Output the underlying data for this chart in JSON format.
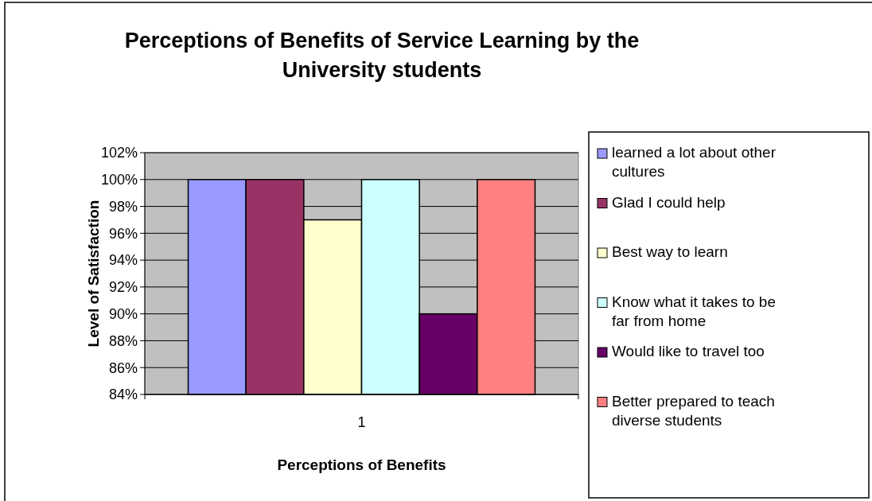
{
  "chart_data": {
    "type": "bar",
    "title": "Perceptions of Benefits of Service Learning by the University students",
    "xlabel": "Perceptions of Benefits",
    "ylabel": "Level of Satisfaction",
    "categories": [
      "1"
    ],
    "series": [
      {
        "name": "learned a lot about other cultures",
        "color": "#9999ff",
        "values": [
          100
        ]
      },
      {
        "name": "Glad I could help",
        "color": "#993366",
        "values": [
          100
        ]
      },
      {
        "name": "Best way to learn",
        "color": "#ffffcc",
        "values": [
          97
        ]
      },
      {
        "name": "Know what it takes to be far from home",
        "color": "#ccffff",
        "values": [
          100
        ]
      },
      {
        "name": "Would like to travel too",
        "color": "#660066",
        "values": [
          90
        ]
      },
      {
        "name": "Better prepared to teach diverse students",
        "color": "#ff8080",
        "values": [
          100
        ]
      }
    ],
    "ylim": [
      84,
      102
    ],
    "yticks": [
      {
        "value": 84,
        "label": "84%"
      },
      {
        "value": 86,
        "label": "86%"
      },
      {
        "value": 88,
        "label": "88%"
      },
      {
        "value": 90,
        "label": "90%"
      },
      {
        "value": 92,
        "label": "92%"
      },
      {
        "value": 94,
        "label": "94%"
      },
      {
        "value": 96,
        "label": "96%"
      },
      {
        "value": 98,
        "label": "98%"
      },
      {
        "value": 100,
        "label": "100%"
      },
      {
        "value": 102,
        "label": "102%"
      }
    ],
    "grid": "y",
    "legend": "right"
  }
}
